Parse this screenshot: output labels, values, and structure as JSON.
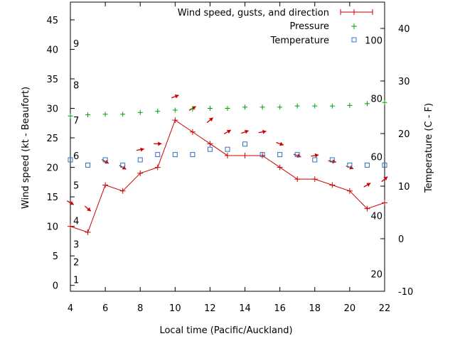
{
  "chart_data": {
    "type": "line",
    "xlabel": "Local time (Pacific/Auckland)",
    "ylabel": "Wind speed (kt - Beaufort)",
    "y2label": "Temperature (C - F)",
    "xlim": [
      4,
      22
    ],
    "ylim": [
      -1,
      48
    ],
    "y2lim": [
      -10,
      45
    ],
    "x_ticks": [
      4,
      6,
      8,
      10,
      12,
      14,
      16,
      18,
      20,
      22
    ],
    "y_ticks": [
      0,
      5,
      10,
      15,
      20,
      25,
      30,
      35,
      40,
      45
    ],
    "y2_ticks": [
      -10,
      0,
      10,
      20,
      30,
      40
    ],
    "beaufort_labels": [
      {
        "label": "1",
        "y": 1
      },
      {
        "label": "2",
        "y": 4
      },
      {
        "label": "3",
        "y": 7
      },
      {
        "label": "4",
        "y": 11
      },
      {
        "label": "5",
        "y": 17
      },
      {
        "label": "6",
        "y": 22
      },
      {
        "label": "7",
        "y": 28
      },
      {
        "label": "8",
        "y": 34
      },
      {
        "label": "9",
        "y": 41
      }
    ],
    "fahrenheit_labels": [
      {
        "label": "20",
        "c": -6.7
      },
      {
        "label": "40",
        "c": 4.4
      },
      {
        "label": "60",
        "c": 15.6
      },
      {
        "label": "80",
        "c": 26.7
      },
      {
        "label": "100",
        "c": 37.8
      }
    ],
    "legend": {
      "position": "top-right",
      "wind": "Wind speed, gusts, and direction",
      "pressure": "Pressure",
      "temperature": "Temperature"
    },
    "colors": {
      "wind": "#cc0000",
      "pressure": "#00a000",
      "temperature": "#3070c0"
    },
    "wind": {
      "x": [
        4,
        5,
        6,
        7,
        8,
        9,
        10,
        11,
        12,
        13,
        14,
        15,
        16,
        17,
        18,
        19,
        20,
        21,
        22
      ],
      "speed": [
        10,
        9,
        17,
        16,
        19,
        20,
        28,
        26,
        24,
        22,
        22,
        22,
        20,
        18,
        18,
        17,
        16,
        13,
        14
      ],
      "arrow_angle_deg": [
        30,
        40,
        30,
        30,
        -10,
        0,
        -20,
        -30,
        -40,
        -30,
        -20,
        -10,
        20,
        20,
        -10,
        10,
        20,
        -30,
        -40
      ]
    },
    "pressure": {
      "x": [
        4,
        5,
        6,
        7,
        8,
        9,
        10,
        11,
        12,
        13,
        14,
        15,
        16,
        17,
        18,
        19,
        20,
        21,
        22
      ],
      "values": [
        28.7,
        28.9,
        29.0,
        29.0,
        29.3,
        29.5,
        29.7,
        29.9,
        30.0,
        30.0,
        30.2,
        30.2,
        30.2,
        30.4,
        30.4,
        30.4,
        30.5,
        30.8,
        31.0
      ]
    },
    "temperature": {
      "x": [
        4,
        5,
        6,
        7,
        8,
        9,
        10,
        11,
        12,
        13,
        14,
        15,
        16,
        17,
        18,
        19,
        20,
        21,
        22
      ],
      "values": [
        15,
        14,
        15,
        14,
        15,
        16,
        16,
        16,
        17,
        17,
        18,
        16,
        16,
        16,
        15,
        15,
        14,
        14,
        14
      ]
    }
  }
}
